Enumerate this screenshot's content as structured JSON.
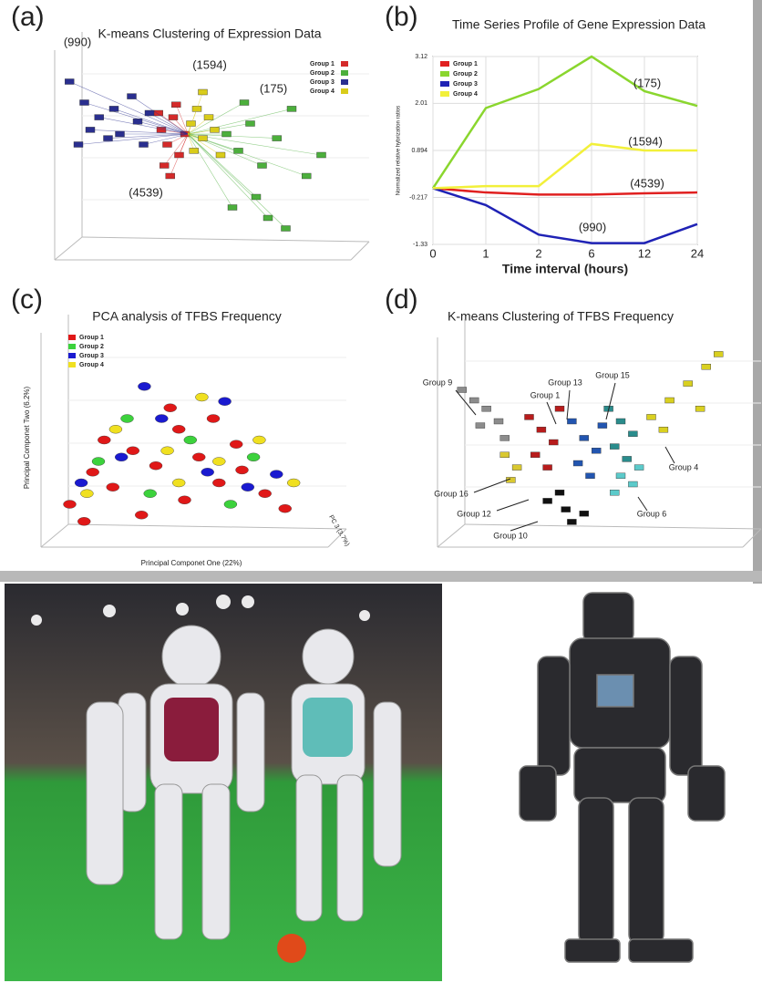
{
  "panel_labels": [
    "(a)",
    "(b)",
    "(c)",
    "(d)"
  ],
  "chart_data": [
    {
      "type": "scatter",
      "title": "K-means Clustering of Expression Data",
      "xlim": [
        0,
        100
      ],
      "ylim": [
        0,
        100
      ],
      "series": [
        {
          "name": "Group 1",
          "color": "#d42a2a",
          "x": [
            36,
            38,
            40,
            42,
            37,
            44,
            39,
            41,
            35
          ],
          "values": [
            62,
            55,
            68,
            50,
            45,
            60,
            40,
            74,
            70
          ]
        },
        {
          "name": "Group 2",
          "color": "#4caf3c",
          "x": [
            58,
            62,
            66,
            70,
            75,
            80,
            68,
            72,
            60,
            85,
            78,
            64,
            90
          ],
          "values": [
            60,
            52,
            65,
            45,
            58,
            72,
            30,
            20,
            25,
            40,
            15,
            75,
            50
          ]
        },
        {
          "name": "Group 3",
          "color": "#2a2f8f",
          "x": [
            10,
            15,
            20,
            22,
            28,
            30,
            18,
            26,
            12,
            32,
            5,
            8
          ],
          "values": [
            75,
            68,
            72,
            60,
            66,
            55,
            58,
            78,
            62,
            70,
            85,
            55
          ]
        },
        {
          "name": "Group 4",
          "color": "#d9cc1a",
          "x": [
            46,
            48,
            50,
            52,
            47,
            54,
            50,
            56
          ],
          "values": [
            65,
            72,
            58,
            68,
            52,
            62,
            80,
            50
          ]
        }
      ],
      "annotations": [
        "(990)",
        "(1594)",
        "(175)",
        "(4539)"
      ]
    },
    {
      "type": "line",
      "title": "Time Series Profile of Gene Expression Data",
      "x_label": "Time interval (hours)",
      "y_label": "Normalized relative hybrization ratios",
      "categories": [
        "0",
        "1",
        "2",
        "6",
        "12",
        "24"
      ],
      "ylim": [
        -1.33,
        3.12
      ],
      "yticks": [
        3.12,
        2.01,
        0.894,
        -0.217,
        -1.33
      ],
      "grid": true,
      "series": [
        {
          "name": "Group 1",
          "color": "#e02020",
          "values": [
            0,
            -0.1,
            -0.15,
            -0.15,
            -0.12,
            -0.1
          ]
        },
        {
          "name": "Group 2",
          "color": "#8ad62e",
          "values": [
            0,
            1.9,
            2.35,
            3.12,
            2.3,
            1.95
          ]
        },
        {
          "name": "Group 3",
          "color": "#1f22b5",
          "values": [
            0,
            -0.4,
            -1.1,
            -1.3,
            -1.3,
            -0.85
          ]
        },
        {
          "name": "Group 4",
          "color": "#f2f03a",
          "values": [
            0,
            0.05,
            0.05,
            1.05,
            0.894,
            0.894
          ]
        }
      ],
      "annotations": [
        "(175)",
        "(1594)",
        "(4539)",
        "(990)"
      ]
    },
    {
      "type": "scatter",
      "title": "PCA  analysis of TFBS Frequency",
      "x_label": "Principal Componet One  (22%)",
      "y_label": "Principal Componet Two  (6.2%)",
      "z_label": "PC 3  (3.7%)",
      "xlim": [
        0,
        100
      ],
      "ylim": [
        0,
        100
      ],
      "series": [
        {
          "name": "Group 1",
          "color": "#e01818",
          "x": [
            10,
            18,
            25,
            32,
            40,
            48,
            55,
            62,
            70,
            78,
            85,
            22,
            45,
            60,
            35,
            50,
            68,
            15
          ],
          "values": [
            20,
            35,
            28,
            45,
            38,
            55,
            42,
            30,
            36,
            25,
            18,
            50,
            65,
            60,
            15,
            22,
            48,
            12
          ]
        },
        {
          "name": "Group 2",
          "color": "#3cd23c",
          "x": [
            20,
            38,
            52,
            66,
            74,
            30
          ],
          "values": [
            40,
            25,
            50,
            20,
            42,
            60
          ]
        },
        {
          "name": "Group 3",
          "color": "#1a1ad0",
          "x": [
            14,
            28,
            42,
            58,
            72,
            82,
            36,
            64
          ],
          "values": [
            30,
            42,
            60,
            35,
            28,
            34,
            75,
            68
          ]
        },
        {
          "name": "Group 4",
          "color": "#f0e020",
          "x": [
            16,
            26,
            44,
            56,
            62,
            76,
            48,
            88
          ],
          "values": [
            25,
            55,
            45,
            70,
            40,
            50,
            30,
            30
          ]
        }
      ]
    },
    {
      "type": "scatter",
      "title": "K-means Clustering of TFBS Frequency",
      "xlim": [
        0,
        100
      ],
      "ylim": [
        0,
        100
      ],
      "series": [
        {
          "color": "#8c8c8c",
          "x": [
            8,
            12,
            16,
            20,
            14,
            22
          ],
          "values": [
            75,
            70,
            66,
            60,
            58,
            52
          ]
        },
        {
          "color": "#b81c1c",
          "x": [
            30,
            34,
            38,
            32,
            36,
            40
          ],
          "values": [
            62,
            56,
            50,
            44,
            38,
            66
          ]
        },
        {
          "color": "#2255b0",
          "x": [
            44,
            48,
            52,
            46,
            50,
            54
          ],
          "values": [
            60,
            52,
            46,
            40,
            34,
            58
          ]
        },
        {
          "color": "#2a8c8c",
          "x": [
            56,
            60,
            64,
            58,
            62
          ],
          "values": [
            66,
            60,
            54,
            48,
            42
          ]
        },
        {
          "color": "#d9d020",
          "x": [
            70,
            76,
            82,
            88,
            92,
            74,
            86
          ],
          "values": [
            62,
            70,
            78,
            86,
            92,
            56,
            66
          ]
        },
        {
          "color": "#d9c830",
          "x": [
            22,
            26,
            24
          ],
          "values": [
            44,
            38,
            32
          ]
        },
        {
          "color": "#111111",
          "x": [
            36,
            42,
            48,
            44,
            40
          ],
          "values": [
            22,
            18,
            16,
            12,
            26
          ]
        },
        {
          "color": "#5ccaca",
          "x": [
            60,
            64,
            58,
            66
          ],
          "values": [
            34,
            30,
            26,
            38
          ]
        }
      ],
      "annotations": [
        "Group 9",
        "Group 13",
        "Group 15",
        "Group 1",
        "Group 4",
        "Group 16",
        "Group 12",
        "Group 6",
        "Group 10"
      ]
    }
  ]
}
